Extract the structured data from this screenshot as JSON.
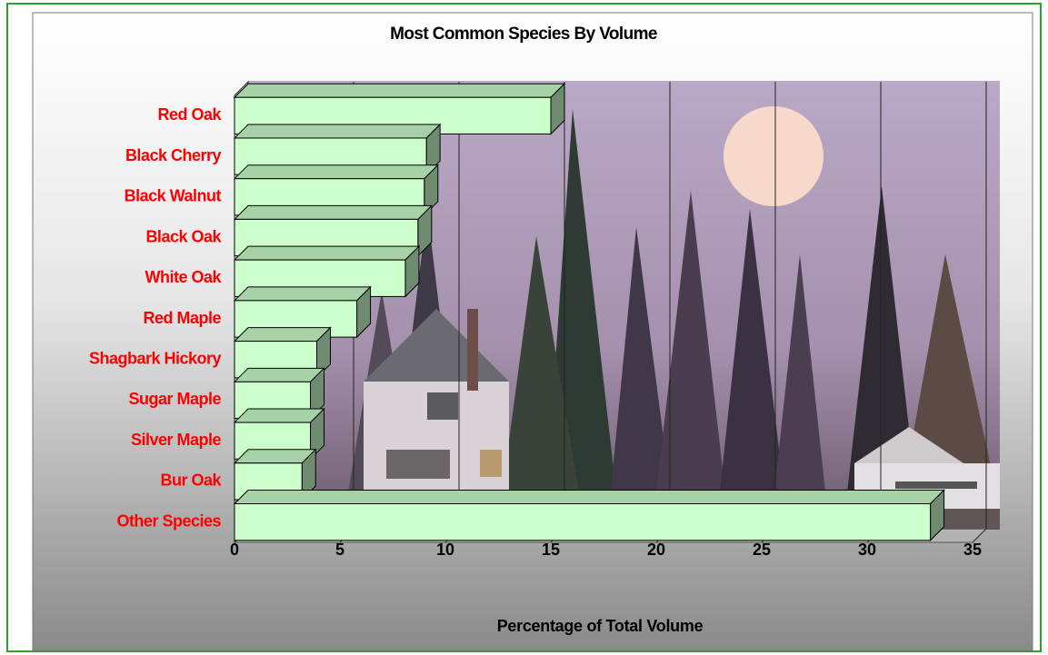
{
  "chart_data": {
    "type": "bar",
    "orientation": "horizontal",
    "title": "Most Common Species By Volume",
    "x_label": "Percentage of Total Volume",
    "categories": [
      "Red Oak",
      "Black Cherry",
      "Black Walnut",
      "Black Oak",
      "White Oak",
      "Red Maple",
      "Shagbark Hickory",
      "Sugar Maple",
      "Silver Maple",
      "Bur Oak",
      "Other Species"
    ],
    "values": [
      15,
      9.1,
      9,
      8.7,
      8.1,
      5.8,
      3.9,
      3.6,
      3.6,
      3.2,
      33
    ],
    "color": "#ccffcc",
    "xlim": [
      0,
      35
    ],
    "xticks": [
      0,
      5,
      10,
      15,
      20,
      25,
      30,
      35
    ],
    "grid": true
  }
}
